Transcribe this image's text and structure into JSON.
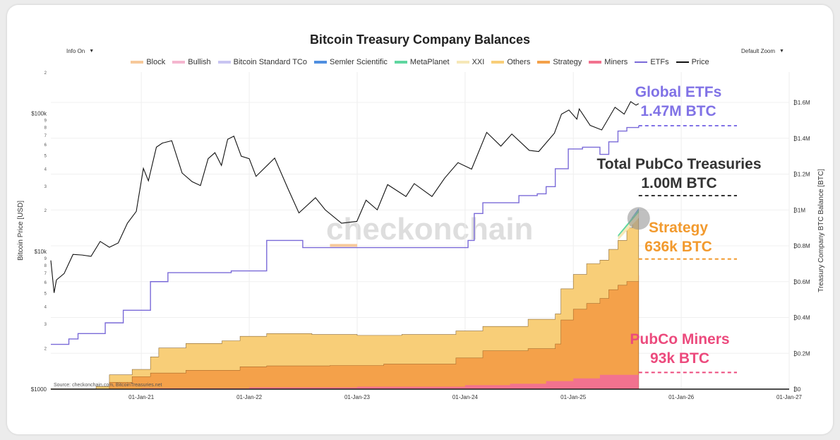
{
  "chart_data": {
    "type": "area",
    "title": "Bitcoin Treasury Company Balances",
    "ylabel_left": "Bitcoin Price [USD]",
    "ylabel_right": "Treasury Company BTC Balance [BTC]",
    "y_left_scale": "log",
    "y_left_range": [
      1000,
      200000
    ],
    "y_left_major_ticks": [
      "$1000",
      "$10k",
      "$100k"
    ],
    "y_left_minor_ticks": [
      "2",
      "3",
      "4",
      "5",
      "6",
      "7",
      "8",
      "9",
      "2",
      "3",
      "4",
      "5",
      "6",
      "7",
      "8",
      "9",
      "2"
    ],
    "y_right_range": [
      0,
      1600000
    ],
    "y_right_ticks": [
      "₿0",
      "₿0.2M",
      "₿0.4M",
      "₿0.6M",
      "₿0.8M",
      "₿1M",
      "₿1.2M",
      "₿1.4M",
      "₿1.6M"
    ],
    "x_range": [
      "2020-03-01",
      "2027-01-01"
    ],
    "x_ticks": [
      "01-Jan-21",
      "01-Jan-22",
      "01-Jan-23",
      "01-Jan-24",
      "01-Jan-25",
      "01-Jan-26",
      "01-Jan-27"
    ],
    "grid": true,
    "legend_position": "top",
    "series_order_stack_top_to_bottom": [
      "MetaPlanet",
      "Others",
      "Strategy",
      "Miners"
    ],
    "series": [
      {
        "name": "Block",
        "color": "#f7c99a",
        "kind": "area"
      },
      {
        "name": "Bullish",
        "color": "#f5b6cf",
        "kind": "area"
      },
      {
        "name": "Bitcoin Standard TCo",
        "color": "#c9c5f2",
        "kind": "area"
      },
      {
        "name": "Semler Scientific",
        "color": "#4f8fe0",
        "kind": "area"
      },
      {
        "name": "MetaPlanet",
        "color": "#5fd6a0",
        "kind": "area"
      },
      {
        "name": "XXI",
        "color": "#f6e8b8",
        "kind": "area"
      },
      {
        "name": "Others",
        "color": "#f8ce78",
        "kind": "area"
      },
      {
        "name": "Strategy",
        "color": "#f4a14a",
        "kind": "area"
      },
      {
        "name": "Miners",
        "color": "#f2728f",
        "kind": "area"
      },
      {
        "name": "ETFs",
        "color": "#7a6ad8",
        "kind": "line"
      },
      {
        "name": "Price",
        "color": "#111111",
        "kind": "line"
      }
    ],
    "total_pubco": {
      "x": [
        "2020-03-01",
        "2020-08-01",
        "2020-09-15",
        "2020-12-01",
        "2021-02-01",
        "2021-03-01",
        "2021-06-01",
        "2021-10-01",
        "2021-12-01",
        "2022-03-01",
        "2022-08-01",
        "2023-01-01",
        "2023-06-01",
        "2023-12-01",
        "2024-03-01",
        "2024-08-01",
        "2024-11-01",
        "2024-11-20",
        "2025-01-01",
        "2025-02-15",
        "2025-04-01",
        "2025-05-01",
        "2025-06-01",
        "2025-07-01",
        "2025-07-20",
        "2025-08-10"
      ],
      "values": [
        2000,
        15000,
        80000,
        110000,
        180000,
        230000,
        255000,
        270000,
        295000,
        310000,
        305000,
        300000,
        305000,
        325000,
        350000,
        390000,
        420000,
        560000,
        640000,
        700000,
        720000,
        780000,
        830000,
        900000,
        960000,
        1000000
      ]
    },
    "strategy": {
      "x": [
        "2020-03-01",
        "2020-08-01",
        "2020-09-15",
        "2020-12-01",
        "2021-02-01",
        "2021-06-01",
        "2021-12-01",
        "2022-03-01",
        "2022-10-01",
        "2023-04-01",
        "2023-12-01",
        "2024-03-01",
        "2024-08-01",
        "2024-11-01",
        "2024-11-20",
        "2025-01-01",
        "2025-02-15",
        "2025-04-01",
        "2025-05-01",
        "2025-06-01",
        "2025-07-01",
        "2025-08-10"
      ],
      "values": [
        0,
        0,
        38000,
        70000,
        90000,
        105000,
        125000,
        130000,
        132000,
        140000,
        174000,
        214000,
        226000,
        252000,
        386000,
        446000,
        478000,
        506000,
        555000,
        580000,
        601000,
        636000
      ]
    },
    "miners": {
      "x": [
        "2020-03-01",
        "2021-01-01",
        "2022-01-01",
        "2023-01-01",
        "2024-01-01",
        "2024-06-01",
        "2024-10-01",
        "2025-01-01",
        "2025-04-01",
        "2025-08-10"
      ],
      "values": [
        2000,
        5000,
        10000,
        14000,
        22000,
        30000,
        45000,
        60000,
        80000,
        93000
      ]
    },
    "etfs": {
      "x": [
        "2020-03-01",
        "2020-05-01",
        "2020-06-01",
        "2020-09-01",
        "2020-11-01",
        "2021-02-01",
        "2021-04-01",
        "2021-11-01",
        "2022-03-01",
        "2022-07-01",
        "2022-09-01",
        "2023-09-01",
        "2023-12-01",
        "2024-01-11",
        "2024-02-01",
        "2024-03-01",
        "2024-04-01",
        "2024-07-01",
        "2024-09-01",
        "2024-10-01",
        "2024-11-01",
        "2024-12-15",
        "2025-02-01",
        "2025-04-01",
        "2025-05-01",
        "2025-06-01",
        "2025-07-01",
        "2025-08-10"
      ],
      "values": [
        250000,
        280000,
        310000,
        370000,
        440000,
        600000,
        650000,
        660000,
        830000,
        790000,
        790000,
        790000,
        790000,
        830000,
        980000,
        1040000,
        1040000,
        1080000,
        1090000,
        1130000,
        1230000,
        1340000,
        1350000,
        1310000,
        1380000,
        1440000,
        1460000,
        1470000
      ]
    },
    "price": {
      "x": [
        "2020-03-01",
        "2020-03-12",
        "2020-03-20",
        "2020-04-15",
        "2020-05-15",
        "2020-06-15",
        "2020-07-15",
        "2020-08-15",
        "2020-09-15",
        "2020-10-15",
        "2020-11-15",
        "2020-12-15",
        "2021-01-08",
        "2021-01-25",
        "2021-02-21",
        "2021-03-13",
        "2021-04-14",
        "2021-05-19",
        "2021-06-22",
        "2021-07-20",
        "2021-08-15",
        "2021-09-07",
        "2021-09-29",
        "2021-10-20",
        "2021-11-10",
        "2021-12-05",
        "2022-01-01",
        "2022-01-24",
        "2022-03-28",
        "2022-05-12",
        "2022-06-18",
        "2022-08-13",
        "2022-09-15",
        "2022-11-09",
        "2022-12-31",
        "2023-01-31",
        "2023-03-10",
        "2023-04-14",
        "2023-06-15",
        "2023-07-13",
        "2023-09-11",
        "2023-10-24",
        "2023-12-08",
        "2024-01-23",
        "2024-03-14",
        "2024-05-01",
        "2024-06-07",
        "2024-08-05",
        "2024-09-06",
        "2024-10-29",
        "2024-11-22",
        "2024-12-17",
        "2025-01-13",
        "2025-01-21",
        "2025-02-27",
        "2025-04-07",
        "2025-05-22",
        "2025-06-22",
        "2025-07-14",
        "2025-08-01",
        "2025-08-10"
      ],
      "values": [
        8600,
        5000,
        6200,
        6900,
        9500,
        9400,
        9200,
        11800,
        10700,
        11500,
        16000,
        19500,
        40000,
        32500,
        57000,
        61000,
        63500,
        37000,
        32000,
        30000,
        47000,
        52000,
        42000,
        65000,
        68500,
        49000,
        47000,
        35000,
        47500,
        28500,
        19000,
        24500,
        20000,
        16000,
        16500,
        23500,
        20000,
        30500,
        25000,
        31000,
        25000,
        34000,
        44000,
        39500,
        73000,
        58000,
        71000,
        54000,
        53000,
        72000,
        99000,
        106000,
        91000,
        108000,
        82000,
        76000,
        111000,
        99000,
        122000,
        115000,
        118000
      ]
    },
    "callouts": [
      {
        "line1": "Global ETFs",
        "line2": "1.47M BTC",
        "color": "#8072e6"
      },
      {
        "line1": "Total PubCo Treasuries",
        "line2": "1.00M BTC",
        "color": "#333333"
      },
      {
        "line1": "Strategy",
        "line2": "636k BTC",
        "color": "#f29a2e"
      },
      {
        "line1": "PubCo Miners",
        "line2": "93k BTC",
        "color": "#ec4a7d"
      }
    ],
    "source": "Source: checkonchain.com, BitcoinTreasuries.net",
    "watermark": "checkonchain"
  },
  "controls": {
    "info_label": "Info On",
    "zoom_label": "Default Zoom",
    "caret": "▼"
  }
}
